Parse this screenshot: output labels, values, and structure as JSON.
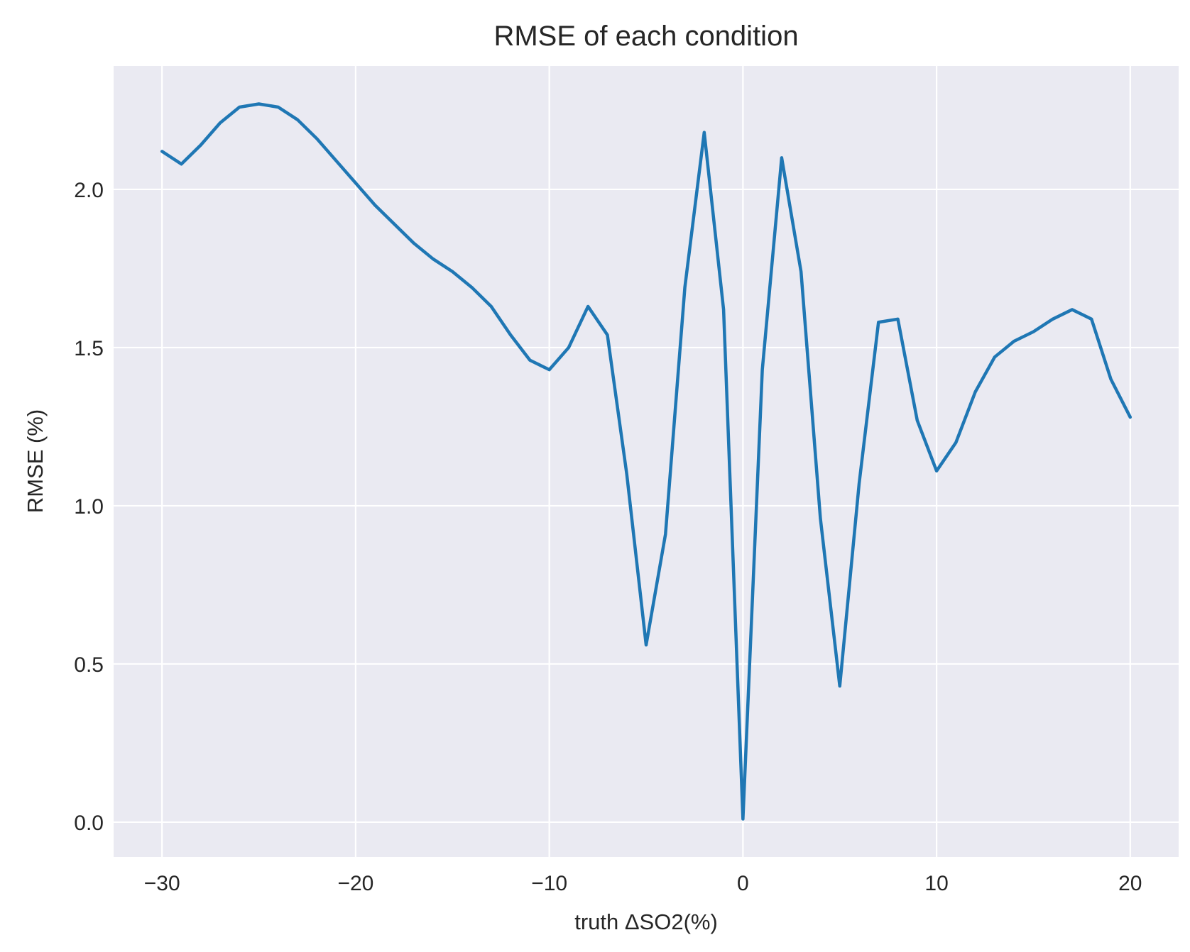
{
  "chart_data": {
    "type": "line",
    "title": "RMSE of each condition",
    "xlabel": "truth ΔSO2(%)",
    "ylabel": "RMSE (%)",
    "xlim": [
      -32.5,
      22.5
    ],
    "ylim": [
      -0.11,
      2.39
    ],
    "xticks": [
      -30,
      -20,
      -10,
      0,
      10,
      20
    ],
    "xtick_labels": [
      "−30",
      "−20",
      "−10",
      "0",
      "10",
      "20"
    ],
    "yticks": [
      0.0,
      0.5,
      1.0,
      1.5,
      2.0
    ],
    "ytick_labels": [
      "0.0",
      "0.5",
      "1.0",
      "1.5",
      "2.0"
    ],
    "grid": true,
    "background": "#eaeaf2",
    "series": [
      {
        "color": "#1f77b4",
        "x": [
          -30,
          -29,
          -28,
          -27,
          -26,
          -25,
          -24,
          -23,
          -22,
          -21,
          -20,
          -19,
          -18,
          -17,
          -16,
          -15,
          -14,
          -13,
          -12,
          -11,
          -10,
          -9,
          -8,
          -7,
          -6,
          -5,
          -4,
          -3,
          -2,
          -1,
          0,
          1,
          2,
          3,
          4,
          5,
          6,
          7,
          8,
          9,
          10,
          11,
          12,
          13,
          14,
          15,
          16,
          17,
          18,
          19,
          20
        ],
        "y": [
          2.12,
          2.08,
          2.14,
          2.21,
          2.26,
          2.27,
          2.26,
          2.22,
          2.16,
          2.09,
          2.02,
          1.95,
          1.89,
          1.83,
          1.78,
          1.74,
          1.69,
          1.63,
          1.54,
          1.46,
          1.43,
          1.5,
          1.63,
          1.54,
          1.1,
          0.56,
          0.91,
          1.69,
          2.18,
          1.62,
          0.01,
          1.43,
          2.1,
          1.74,
          0.96,
          0.43,
          1.07,
          1.58,
          1.59,
          1.27,
          1.11,
          1.2,
          1.36,
          1.47,
          1.52,
          1.55,
          1.59,
          1.62,
          1.59,
          1.4,
          1.28
        ]
      }
    ]
  }
}
